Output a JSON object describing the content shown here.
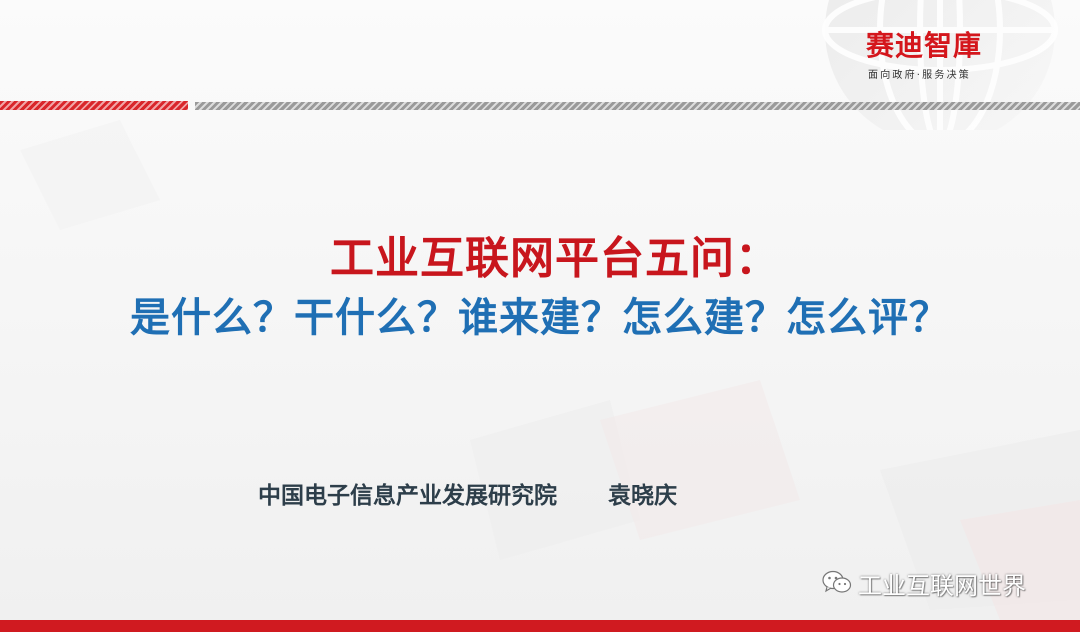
{
  "logo": {
    "main": "赛迪智庫",
    "tagline": "面向政府·服务决策"
  },
  "title": {
    "line1": "工业互联网平台五问：",
    "line2": "是什么？干什么？谁来建？怎么建？怎么评？"
  },
  "byline": {
    "organization": "中国电子信息产业发展研究院",
    "author": "袁晓庆"
  },
  "watermark": {
    "icon": "wechat-icon",
    "text": "工业互联网世界"
  },
  "colors": {
    "title_red": "#c8161d",
    "subtitle_blue": "#1f6fb4",
    "byline": "#2d3e4a",
    "brand_red": "#d01a20"
  }
}
